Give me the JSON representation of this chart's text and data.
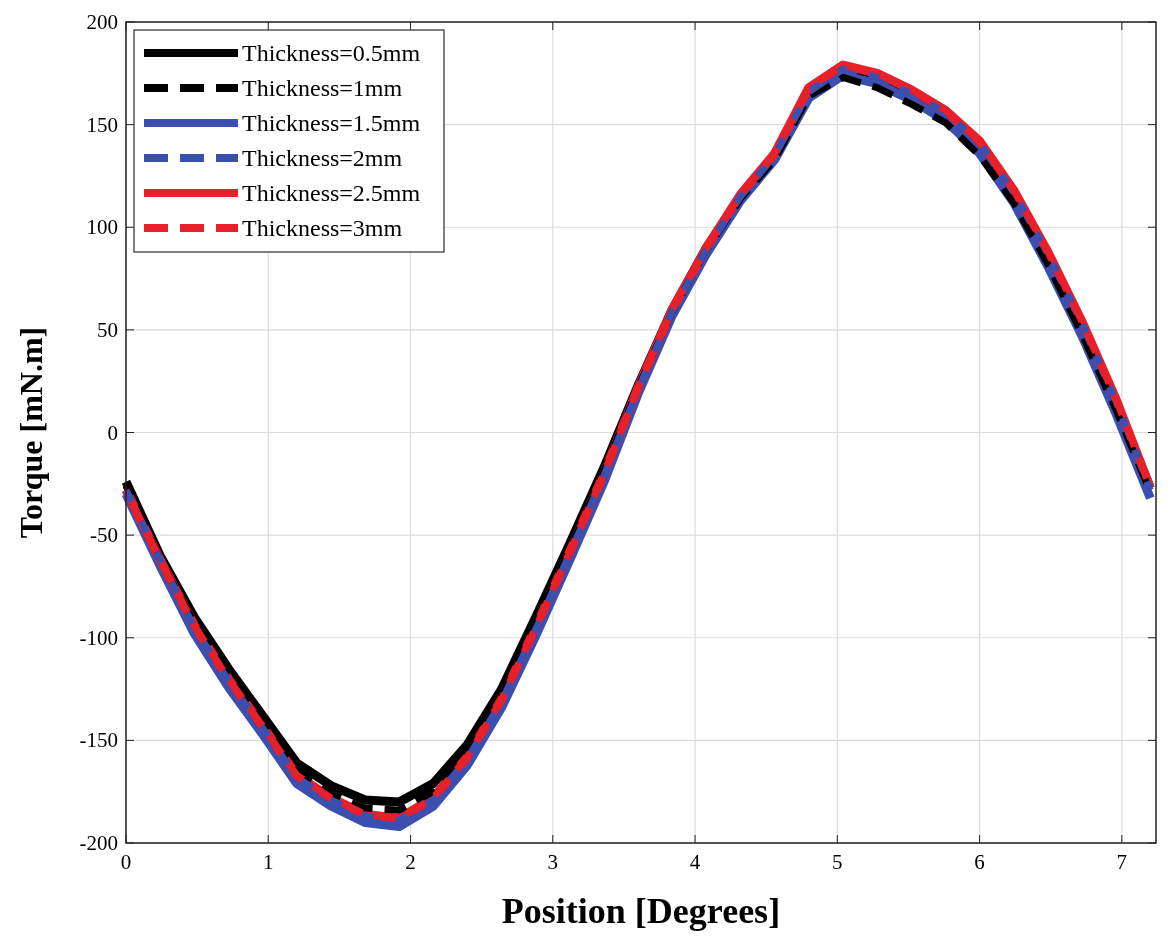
{
  "chart_data": {
    "type": "line",
    "xlabel": "Position [Degrees]",
    "ylabel": "Torque [mN.m]",
    "x": [
      0,
      0.24,
      0.48,
      0.72,
      0.96,
      1.2,
      1.44,
      1.68,
      1.92,
      2.16,
      2.4,
      2.64,
      2.88,
      3.12,
      3.36,
      3.6,
      3.84,
      4.08,
      4.32,
      4.56,
      4.8,
      5.04,
      5.28,
      5.52,
      5.76,
      6.0,
      6.24,
      6.48,
      6.72,
      6.96,
      7.2
    ],
    "series": [
      {
        "name": "Thickness=0.5mm",
        "color": "#000000",
        "line_style": "solid",
        "values": [
          -24,
          -60,
          -90,
          -115,
          -138,
          -161,
          -172,
          -179,
          -180,
          -171,
          -152,
          -125,
          -90,
          -54,
          -17,
          23,
          60,
          90,
          115,
          134,
          165,
          175,
          171,
          163,
          154,
          138,
          115,
          85,
          51,
          14,
          -27
        ]
      },
      {
        "name": "Thickness=1mm",
        "color": "#000000",
        "line_style": "dashed",
        "values": [
          -26,
          -62,
          -93,
          -118,
          -141,
          -165,
          -176,
          -183,
          -184,
          -175,
          -156,
          -129,
          -93,
          -57,
          -19,
          22,
          59,
          89,
          114,
          133,
          164,
          173,
          168,
          160,
          151,
          135,
          112,
          82,
          48,
          11,
          -29
        ]
      },
      {
        "name": "Thickness=1.5mm",
        "color": "#3a4fb0",
        "line_style": "solid",
        "values": [
          -30,
          -65,
          -98,
          -124,
          -147,
          -171,
          -182,
          -190,
          -192,
          -182,
          -162,
          -134,
          -99,
          -62,
          -24,
          19,
          57,
          87,
          113,
          133,
          163,
          174,
          170,
          162,
          152,
          136,
          112,
          81,
          47,
          9,
          -32
        ]
      },
      {
        "name": "Thickness=2mm",
        "color": "#3a4fb0",
        "line_style": "dashed",
        "values": [
          -28,
          -62,
          -95,
          -121,
          -144,
          -168,
          -179,
          -187,
          -189,
          -179,
          -159,
          -131,
          -96,
          -59,
          -21,
          21,
          59,
          89,
          115,
          135,
          166,
          177,
          173,
          165,
          156,
          141,
          117,
          87,
          53,
          15,
          -28
        ]
      },
      {
        "name": "Thickness=2.5mm",
        "color": "#e8202a",
        "line_style": "solid",
        "values": [
          -28,
          -62,
          -94,
          -120,
          -143,
          -167,
          -178,
          -186,
          -188,
          -178,
          -158,
          -130,
          -95,
          -58,
          -20,
          22,
          60,
          90,
          116,
          136,
          168,
          179,
          175,
          167,
          157,
          142,
          118,
          88,
          54,
          16,
          -27
        ]
      },
      {
        "name": "Thickness=3mm",
        "color": "#e8202a",
        "line_style": "dashed",
        "values": [
          -28,
          -62,
          -94,
          -120,
          -143,
          -167,
          -178,
          -186,
          -188,
          -178,
          -158,
          -130,
          -95,
          -58,
          -20,
          22,
          60,
          90,
          116,
          136,
          168,
          179,
          175,
          167,
          157,
          142,
          118,
          88,
          54,
          16,
          -27
        ]
      }
    ],
    "xlim": [
      0,
      7.24
    ],
    "xticks": [
      0,
      1,
      2,
      3,
      4,
      5,
      6,
      7
    ],
    "ylim": [
      -200,
      200
    ],
    "yticks": [
      -200,
      -150,
      -100,
      -50,
      0,
      50,
      100,
      150,
      200
    ],
    "grid": true,
    "legend": "top left",
    "marker": "none"
  }
}
